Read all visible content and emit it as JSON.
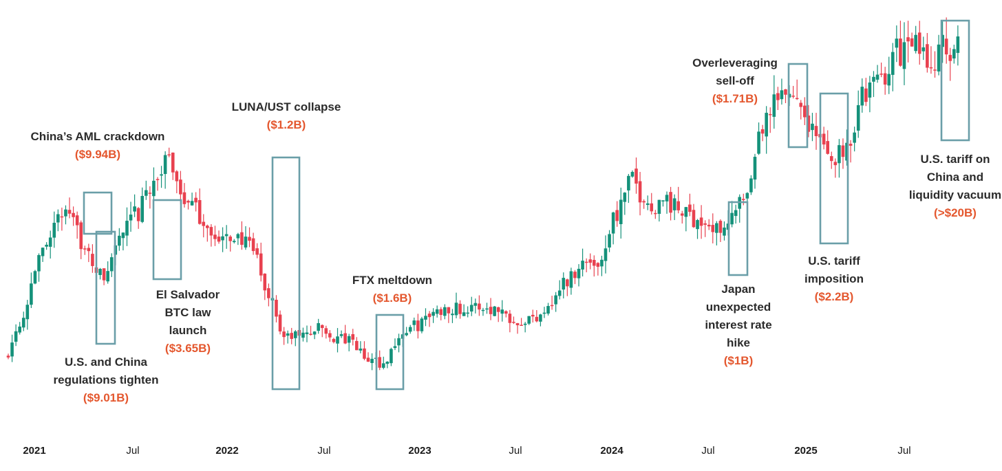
{
  "colors": {
    "up": "#14917a",
    "down": "#e8414f",
    "box": "#6a9ea8",
    "loss": "#e4572e"
  },
  "chart_data": {
    "type": "candlestick",
    "x_ticks": [
      "2021",
      "Jul",
      "2022",
      "Jul",
      "2023",
      "Jul",
      "2024",
      "Jul",
      "2025",
      "Jul"
    ],
    "x_year_ticks": [
      "2021",
      "2022",
      "2023",
      "2024",
      "2025"
    ],
    "x_range": [
      "2021-01",
      "2025-10"
    ],
    "y_axis_shown": false,
    "grid": false,
    "price_index": [
      [
        "2021-01",
        10
      ],
      [
        "2021-02",
        22
      ],
      [
        "2021-03",
        40
      ],
      [
        "2021-04",
        52
      ],
      [
        "2021-05",
        58
      ],
      [
        "2021-06",
        42
      ],
      [
        "2021-07",
        35
      ],
      [
        "2021-08",
        48
      ],
      [
        "2021-09",
        55
      ],
      [
        "2021-10",
        66
      ],
      [
        "2021-11",
        72
      ],
      [
        "2021-12",
        60
      ],
      [
        "2022-01",
        54
      ],
      [
        "2022-02",
        46
      ],
      [
        "2022-03",
        49
      ],
      [
        "2022-04",
        44
      ],
      [
        "2022-05",
        30
      ],
      [
        "2022-06",
        16
      ],
      [
        "2022-07",
        17
      ],
      [
        "2022-08",
        19
      ],
      [
        "2022-09",
        16
      ],
      [
        "2022-10",
        15
      ],
      [
        "2022-11",
        9
      ],
      [
        "2022-12",
        8
      ],
      [
        "2023-01",
        17
      ],
      [
        "2023-02",
        20
      ],
      [
        "2023-03",
        24
      ],
      [
        "2023-04",
        26
      ],
      [
        "2023-05",
        25
      ],
      [
        "2023-06",
        26
      ],
      [
        "2023-07",
        25
      ],
      [
        "2023-08",
        22
      ],
      [
        "2023-09",
        22
      ],
      [
        "2023-10",
        27
      ],
      [
        "2023-11",
        34
      ],
      [
        "2023-12",
        40
      ],
      [
        "2024-01",
        40
      ],
      [
        "2024-02",
        55
      ],
      [
        "2024-03",
        66
      ],
      [
        "2024-04",
        58
      ],
      [
        "2024-05",
        60
      ],
      [
        "2024-06",
        56
      ],
      [
        "2024-07",
        54
      ],
      [
        "2024-08",
        50
      ],
      [
        "2024-09",
        55
      ],
      [
        "2024-10",
        60
      ],
      [
        "2024-11",
        84
      ],
      [
        "2024-12",
        92
      ],
      [
        "2025-01",
        94
      ],
      [
        "2025-02",
        82
      ],
      [
        "2025-03",
        73
      ],
      [
        "2025-04",
        77
      ],
      [
        "2025-05",
        93
      ],
      [
        "2025-06",
        98
      ],
      [
        "2025-07",
        107
      ],
      [
        "2025-08",
        109
      ],
      [
        "2025-09",
        105
      ],
      [
        "2025-10",
        108
      ]
    ],
    "annotations": [
      {
        "title": [
          "China’s AML crackdown"
        ],
        "loss": "($9.94B)",
        "date_start": "2021-05",
        "date_end": "2021-05"
      },
      {
        "title": [
          "U.S. and China",
          "regulations tighten"
        ],
        "loss": "($9.01B)",
        "date_start": "2021-05",
        "date_end": "2021-06"
      },
      {
        "title": [
          "El Salvador",
          "BTC law",
          "launch"
        ],
        "loss": "($3.65B)",
        "date_start": "2021-08",
        "date_end": "2021-09"
      },
      {
        "title": [
          "LUNA/UST collapse"
        ],
        "loss": "($1.2B)",
        "date_start": "2022-04",
        "date_end": "2022-05"
      },
      {
        "title": [
          "FTX meltdown"
        ],
        "loss": "($1.6B)",
        "date_start": "2022-11",
        "date_end": "2022-11"
      },
      {
        "title": [
          "Japan",
          "unexpected",
          "interest rate",
          "hike"
        ],
        "loss": "($1B)",
        "date_start": "2024-08",
        "date_end": "2024-08"
      },
      {
        "title": [
          "Overleveraging",
          "sell-off"
        ],
        "loss": "($1.71B)",
        "date_start": "2024-12",
        "date_end": "2024-12"
      },
      {
        "title": [
          "U.S. tariff",
          "imposition"
        ],
        "loss": "($2.2B)",
        "date_start": "2025-02",
        "date_end": "2025-03"
      },
      {
        "title": [
          "U.S. tariff on",
          "China and",
          "liquidity vacuum"
        ],
        "loss": "(>$20B)",
        "date_start": "2025-10",
        "date_end": "2025-10"
      }
    ]
  }
}
